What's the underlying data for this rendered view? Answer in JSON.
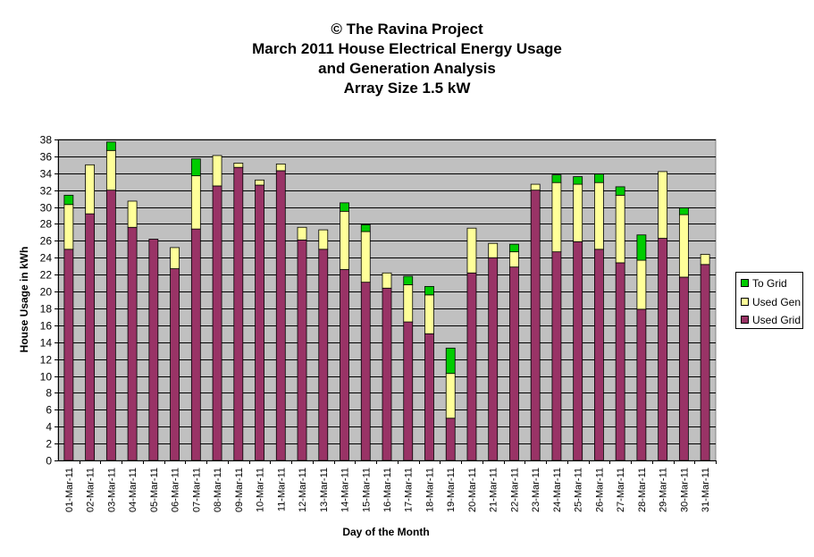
{
  "title_lines": [
    "© The Ravina Project",
    "March 2011 House Electrical Energy Usage",
    "and Generation Analysis",
    "Array Size 1.5 kW"
  ],
  "colors": {
    "used_grid": "#993366",
    "used_gen": "#ffff99",
    "to_grid": "#00cc00",
    "plot_bg": "#c0c0c0",
    "gridline": "#000000"
  },
  "chart_data": {
    "type": "bar",
    "stacked": true,
    "title": "© The Ravina Project March 2011 House Electrical Energy Usage and Generation Analysis Array Size 1.5 kW",
    "xlabel": "Day of the Month",
    "ylabel": "House Usage in kWh",
    "ylim": [
      0,
      38
    ],
    "ytick_step": 2,
    "grid": true,
    "legend_position": "right",
    "categories": [
      "01-Mar-11",
      "02-Mar-11",
      "03-Mar-11",
      "04-Mar-11",
      "05-Mar-11",
      "06-Mar-11",
      "07-Mar-11",
      "08-Mar-11",
      "09-Mar-11",
      "10-Mar-11",
      "11-Mar-11",
      "12-Mar-11",
      "13-Mar-11",
      "14-Mar-11",
      "15-Mar-11",
      "16-Mar-11",
      "17-Mar-11",
      "18-Mar-11",
      "19-Mar-11",
      "20-Mar-11",
      "21-Mar-11",
      "22-Mar-11",
      "23-Mar-11",
      "24-Mar-11",
      "25-Mar-11",
      "26-Mar-11",
      "27-Mar-11",
      "28-Mar-11",
      "29-Mar-11",
      "30-Mar-11",
      "31-Mar-11"
    ],
    "series": [
      {
        "name": "Used Grid",
        "values": [
          25.0,
          29.2,
          32.0,
          27.6,
          26.2,
          22.7,
          27.4,
          32.5,
          34.7,
          32.6,
          34.3,
          26.1,
          25.0,
          22.6,
          21.1,
          20.4,
          16.4,
          15.0,
          5.0,
          22.2,
          24.0,
          22.9,
          32.0,
          24.7,
          25.9,
          25.0,
          23.4,
          17.9,
          26.3,
          21.7,
          23.2
        ]
      },
      {
        "name": "Used Gen",
        "values": [
          5.3,
          5.8,
          4.7,
          3.1,
          0.0,
          2.5,
          6.3,
          3.6,
          0.5,
          0.6,
          0.8,
          1.5,
          2.3,
          6.9,
          6.0,
          1.8,
          4.4,
          4.6,
          5.3,
          5.3,
          1.7,
          1.8,
          0.7,
          8.2,
          6.8,
          7.9,
          8.0,
          5.8,
          7.9,
          7.4,
          1.2
        ]
      },
      {
        "name": "To Grid",
        "values": [
          1.1,
          0.0,
          1.0,
          0.0,
          0.0,
          0.0,
          2.0,
          0.0,
          0.0,
          0.0,
          0.0,
          0.0,
          0.0,
          1.0,
          0.8,
          0.0,
          1.0,
          1.0,
          3.0,
          0.0,
          0.0,
          0.9,
          0.0,
          0.9,
          0.9,
          1.0,
          1.0,
          3.0,
          0.0,
          0.8,
          0.0
        ]
      }
    ]
  }
}
